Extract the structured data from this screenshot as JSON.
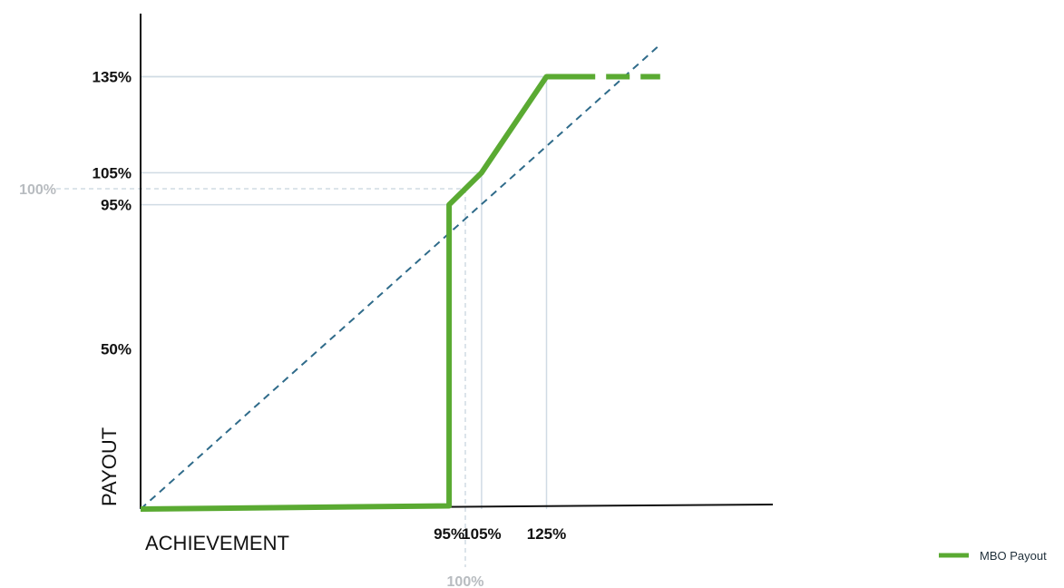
{
  "chart_data": {
    "type": "line",
    "title": "",
    "xlabel": "ACHIEVEMENT",
    "ylabel": "PAYOUT",
    "x_ticks": [
      "95%",
      "105%",
      "125%"
    ],
    "x_reference_tick": "100%",
    "y_ticks": [
      "50%",
      "95%",
      "105%",
      "135%"
    ],
    "y_reference_tick": "100%",
    "xlim": [
      0,
      140
    ],
    "ylim": [
      0,
      150
    ],
    "grid": false,
    "legend_position": "bottom-right",
    "series": [
      {
        "name": "MBO Payout",
        "color": "#5aaa32",
        "style": "solid",
        "x": [
          0,
          95,
          95,
          105,
          125,
          140
        ],
        "y": [
          0,
          1,
          95,
          105,
          135,
          135
        ],
        "dashed_extension": {
          "x": [
            140,
            160
          ],
          "y": [
            135,
            135
          ]
        }
      }
    ],
    "reference_line": {
      "color": "#2f6b8a",
      "style": "dashed",
      "x": [
        0,
        160
      ],
      "y": [
        0,
        145
      ]
    }
  }
}
